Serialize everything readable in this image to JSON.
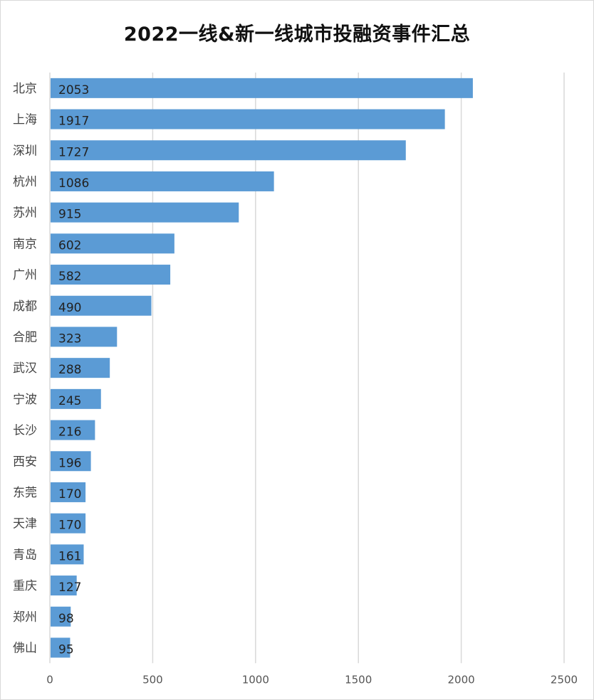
{
  "chart_data": {
    "type": "bar",
    "orientation": "horizontal",
    "title": "2022一线&新一线城市投融资事件汇总",
    "categories": [
      "北京",
      "上海",
      "深圳",
      "杭州",
      "苏州",
      "南京",
      "广州",
      "成都",
      "合肥",
      "武汉",
      "宁波",
      "长沙",
      "西安",
      "东莞",
      "天津",
      "青岛",
      "重庆",
      "郑州",
      "佛山"
    ],
    "values": [
      2053,
      1917,
      1727,
      1086,
      915,
      602,
      582,
      490,
      323,
      288,
      245,
      216,
      196,
      170,
      170,
      161,
      127,
      98,
      95
    ],
    "xlim": [
      0,
      2500
    ],
    "xticks": [
      "0",
      "500",
      "1000",
      "1500",
      "2000",
      "2500"
    ],
    "grid": true,
    "legend": "none",
    "bar_color": "#5b9bd5",
    "grid_color": "#d9d9d9"
  }
}
